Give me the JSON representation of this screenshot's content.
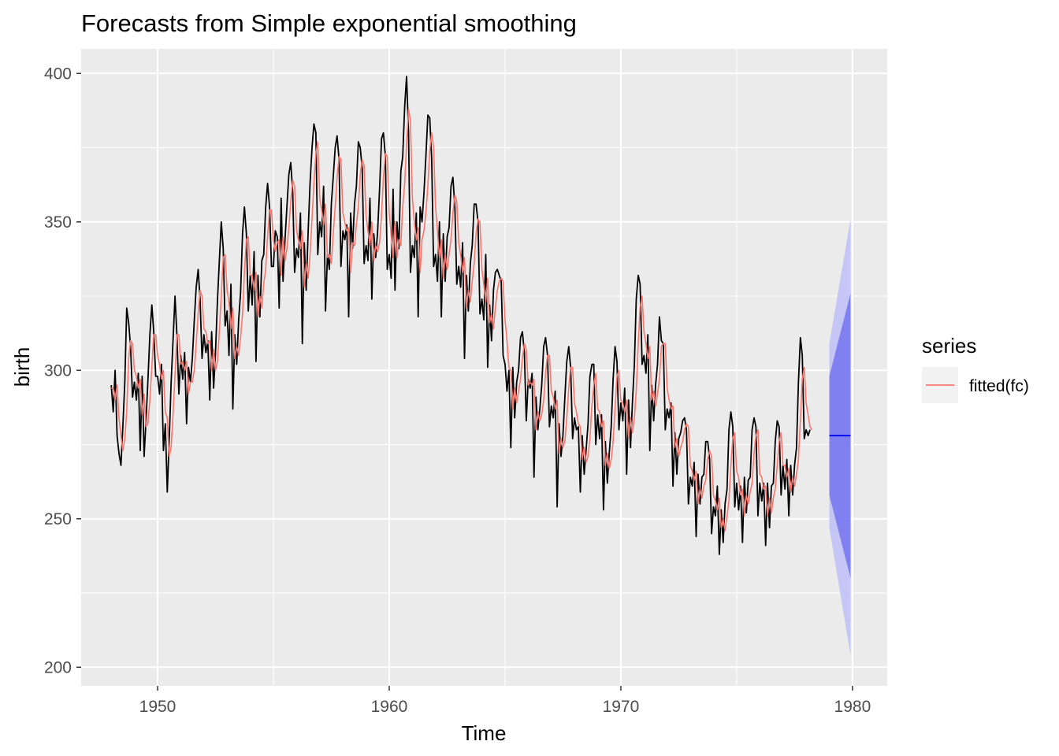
{
  "chart_data": {
    "type": "line",
    "title": "Forecasts from Simple exponential smoothing",
    "xlabel": "Time",
    "ylabel": "birth",
    "xlim": [
      1946.7,
      1981.5
    ],
    "ylim": [
      193.7,
      408.3
    ],
    "x_ticks": [
      1950,
      1960,
      1970,
      1980
    ],
    "x_tick_labels": [
      "1950",
      "1960",
      "1970",
      "1980"
    ],
    "y_ticks": [
      200,
      250,
      300,
      350,
      400
    ],
    "y_tick_labels": [
      "200",
      "250",
      "300",
      "350",
      "400"
    ],
    "grid": true,
    "legend": {
      "title": "series",
      "position": "right",
      "entries": [
        "fitted(fc)"
      ]
    },
    "colors": {
      "panel": "#ebebeb",
      "grid": "#ffffff",
      "observed": "#000000",
      "fitted": "#f8766d",
      "forecast": "#0000ff",
      "pi80": "#8080f0",
      "pi95": "#c6c6f6"
    },
    "series": [
      {
        "role": "observed",
        "x_start": 1948.0,
        "step": 0.0833333,
        "values": [
          295,
          286,
          300,
          278,
          272,
          268,
          281,
          296,
          321,
          316,
          308,
          291,
          296,
          290,
          299,
          273,
          298,
          271,
          283,
          297,
          312,
          322,
          313,
          298,
          298,
          292,
          302,
          273,
          282,
          259,
          276,
          296,
          310,
          325,
          312,
          292,
          305,
          297,
          306,
          282,
          301,
          296,
          304,
          317,
          328,
          334,
          324,
          304,
          312,
          306,
          310,
          290,
          313,
          294,
          306,
          323,
          337,
          350,
          341,
          315,
          320,
          305,
          329,
          287,
          312,
          302,
          317,
          326,
          346,
          355,
          346,
          320,
          332,
          322,
          340,
          303,
          332,
          318,
          337,
          339,
          355,
          363,
          355,
          335,
          335,
          347,
          345,
          321,
          358,
          330,
          344,
          355,
          366,
          370,
          360,
          333,
          341,
          338,
          353,
          309,
          343,
          327,
          347,
          363,
          375,
          383,
          380,
          339,
          350,
          345,
          362,
          320,
          339,
          334,
          356,
          365,
          375,
          379,
          371,
          335,
          347,
          344,
          349,
          318,
          353,
          341,
          356,
          362,
          377,
          375,
          368,
          336,
          342,
          337,
          358,
          324,
          346,
          338,
          347,
          361,
          378,
          380,
          372,
          334,
          339,
          331,
          361,
          327,
          350,
          341,
          367,
          372,
          389,
          399,
          380,
          333,
          342,
          338,
          353,
          318,
          355,
          350,
          360,
          372,
          386,
          385,
          371,
          335,
          339,
          330,
          350,
          318,
          346,
          330,
          345,
          348,
          362,
          365,
          355,
          329,
          335,
          328,
          343,
          304,
          332,
          320,
          336,
          342,
          356,
          356,
          350,
          319,
          324,
          317,
          339,
          301,
          322,
          310,
          327,
          333,
          334,
          332,
          330,
          305,
          302,
          293,
          300,
          274,
          301,
          284,
          296,
          300,
          311,
          313,
          306,
          283,
          297,
          294,
          299,
          264,
          291,
          280,
          287,
          295,
          308,
          311,
          305,
          281,
          288,
          284,
          293,
          254,
          282,
          271,
          278,
          291,
          303,
          308,
          301,
          277,
          284,
          280,
          281,
          259,
          278,
          265,
          273,
          282,
          298,
          302,
          302,
          275,
          285,
          277,
          285,
          253,
          276,
          262,
          272,
          281,
          297,
          308,
          303,
          280,
          289,
          283,
          294,
          265,
          290,
          274,
          289,
          302,
          324,
          332,
          329,
          302,
          305,
          299,
          312,
          273,
          295,
          283,
          295,
          302,
          318,
          310,
          309,
          280,
          287,
          284,
          289,
          261,
          279,
          265,
          277,
          279,
          283,
          284,
          280,
          255,
          264,
          261,
          269,
          244,
          265,
          255,
          264,
          265,
          276,
          276,
          270,
          245,
          254,
          251,
          261,
          238,
          253,
          242,
          255,
          260,
          280,
          286,
          281,
          254,
          262,
          253,
          261,
          242,
          264,
          252,
          263,
          264,
          280,
          284,
          281,
          251,
          262,
          256,
          262,
          241,
          262,
          247,
          261,
          262,
          276,
          283,
          281,
          258,
          268,
          260,
          270,
          251,
          268,
          258,
          268,
          274,
          296,
          311,
          305,
          277,
          280,
          278,
          280
        ]
      },
      {
        "role": "fitted",
        "name": "fitted(fc)",
        "x_start": 1948.0,
        "step": 0.0833333,
        "values": [
          294,
          294,
          290,
          295,
          284,
          278,
          273,
          277,
          286,
          304,
          310,
          309,
          300,
          298,
          294,
          297,
          285,
          292,
          281,
          282,
          290,
          301,
          312,
          312,
          305,
          302,
          297,
          300,
          286,
          284,
          271,
          274,
          285,
          298,
          312,
          312,
          302,
          303,
          300,
          303,
          292,
          296,
          296,
          300,
          309,
          319,
          327,
          325,
          314,
          313,
          309,
          310,
          300,
          307,
          300,
          303,
          313,
          325,
          338,
          339,
          327,
          323,
          314,
          321,
          304,
          308,
          305,
          311,
          319,
          333,
          344,
          345,
          332,
          332,
          327,
          333,
          318,
          325,
          321,
          329,
          334,
          345,
          354,
          354,
          344,
          340,
          343,
          344,
          332,
          345,
          337,
          341,
          348,
          357,
          364,
          362,
          347,
          344,
          341,
          347,
          328,
          336,
          331,
          339,
          351,
          363,
          373,
          377,
          358,
          354,
          349,
          356,
          338,
          339,
          336,
          346,
          355,
          365,
          372,
          371,
          353,
          350,
          347,
          348,
          333,
          343,
          342,
          349,
          355,
          366,
          371,
          369,
          352,
          347,
          342,
          350,
          337,
          342,
          340,
          343,
          352,
          365,
          373,
          372,
          353,
          346,
          338,
          350,
          338,
          344,
          342,
          355,
          363,
          376,
          388,
          384,
          358,
          350,
          344,
          348,
          333,
          344,
          347,
          353,
          362,
          374,
          380,
          375,
          355,
          347,
          338,
          344,
          331,
          339,
          334,
          339,
          344,
          353,
          359,
          357,
          343,
          339,
          333,
          338,
          321,
          327,
          323,
          330,
          336,
          346,
          351,
          350,
          334,
          329,
          323,
          331,
          316,
          319,
          314,
          321,
          327,
          330,
          331,
          330,
          317,
          310,
          301,
          300,
          287,
          294,
          289,
          293,
          297,
          304,
          309,
          307,
          295,
          296,
          295,
          297,
          280,
          286,
          283,
          285,
          290,
          299,
          305,
          305,
          293,
          291,
          287,
          290,
          272,
          277,
          274,
          276,
          284,
          294,
          301,
          301,
          289,
          286,
          282,
          281,
          270,
          274,
          269,
          271,
          277,
          288,
          295,
          299,
          287,
          286,
          281,
          283,
          268,
          272,
          267,
          270,
          276,
          287,
          298,
          300,
          290,
          289,
          286,
          290,
          277,
          284,
          279,
          284,
          293,
          309,
          321,
          325,
          313,
          309,
          304,
          308,
          290,
          293,
          288,
          292,
          297,
          308,
          309,
          309,
          294,
          290,
          287,
          288,
          274,
          277,
          271,
          274,
          276,
          280,
          282,
          281,
          268,
          266,
          263,
          266,
          255,
          260,
          257,
          261,
          263,
          270,
          273,
          271,
          258,
          256,
          253,
          257,
          247,
          250,
          246,
          251,
          256,
          268,
          277,
          279,
          266,
          264,
          258,
          260,
          251,
          258,
          255,
          259,
          262,
          272,
          278,
          280,
          265,
          264,
          260,
          261,
          251,
          257,
          252,
          257,
          260,
          268,
          276,
          279,
          268,
          268,
          264,
          267,
          259,
          264,
          261,
          265,
          270,
          283,
          297,
          301,
          289,
          285,
          281,
          280
        ]
      }
    ],
    "forecast": {
      "x_start": 1979.0,
      "x_end": 1979.917,
      "point": 278,
      "pi80": {
        "lower_start": 258,
        "upper_start": 298,
        "lower_end": 230,
        "upper_end": 326
      },
      "pi95": {
        "lower_start": 247,
        "upper_start": 309,
        "lower_end": 204,
        "upper_end": 351
      }
    }
  }
}
